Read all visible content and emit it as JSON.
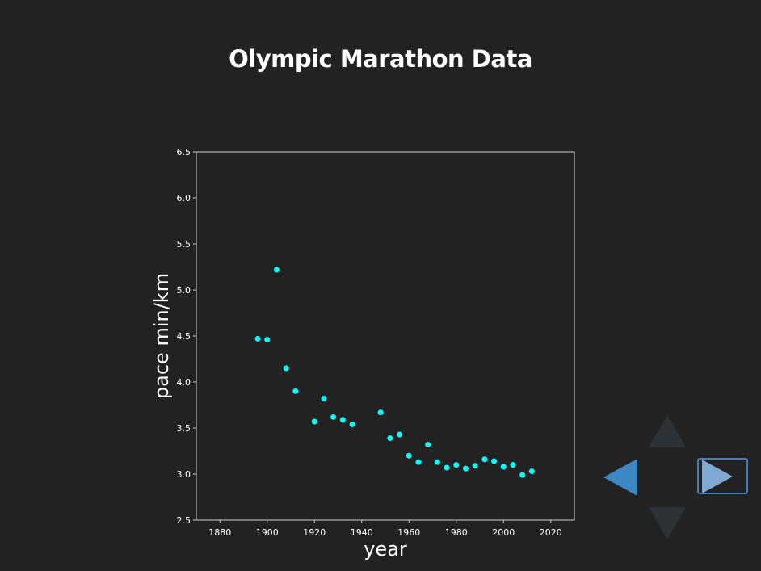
{
  "slide": {
    "title": "Olympic Marathon Data"
  },
  "navigation": {
    "up_icon": "triangle-up-icon",
    "down_icon": "triangle-down-icon",
    "left_icon": "triangle-left-icon",
    "right_icon": "triangle-right-icon",
    "colors": {
      "inactive": "#2d3236",
      "left": "#3d88c2",
      "right": "#7fa9d0",
      "focus_border": "#3b7fc4"
    }
  },
  "chart_data": {
    "type": "scatter",
    "title": "",
    "xlabel": "year",
    "ylabel": "pace min/km",
    "xlim": [
      1870,
      2030
    ],
    "ylim": [
      2.5,
      6.5
    ],
    "xticks": [
      1880,
      1900,
      1920,
      1940,
      1960,
      1980,
      2000,
      2020
    ],
    "yticks": [
      "2.5",
      "3.0",
      "3.5",
      "4.0",
      "4.5",
      "5.0",
      "5.5",
      "6.0",
      "6.5"
    ],
    "grid": false,
    "colors": {
      "marker": "#00ffff",
      "background": "#222222",
      "axes": "#d0d0d0",
      "text": "#ffffff"
    },
    "series": [
      {
        "x": [
          1896,
          1900,
          1904,
          1908,
          1912,
          1920,
          1924,
          1928,
          1932,
          1936,
          1948,
          1952,
          1956,
          1960,
          1964,
          1968,
          1972,
          1976,
          1980,
          1984,
          1988,
          1992,
          1996,
          2000,
          2004,
          2008,
          2012
        ],
        "y": [
          4.47,
          4.46,
          5.22,
          4.15,
          3.9,
          3.57,
          3.82,
          3.62,
          3.59,
          3.54,
          3.67,
          3.39,
          3.43,
          3.2,
          3.13,
          3.32,
          3.13,
          3.07,
          3.1,
          3.06,
          3.09,
          3.16,
          3.14,
          3.08,
          3.1,
          2.99,
          3.03
        ]
      }
    ]
  }
}
